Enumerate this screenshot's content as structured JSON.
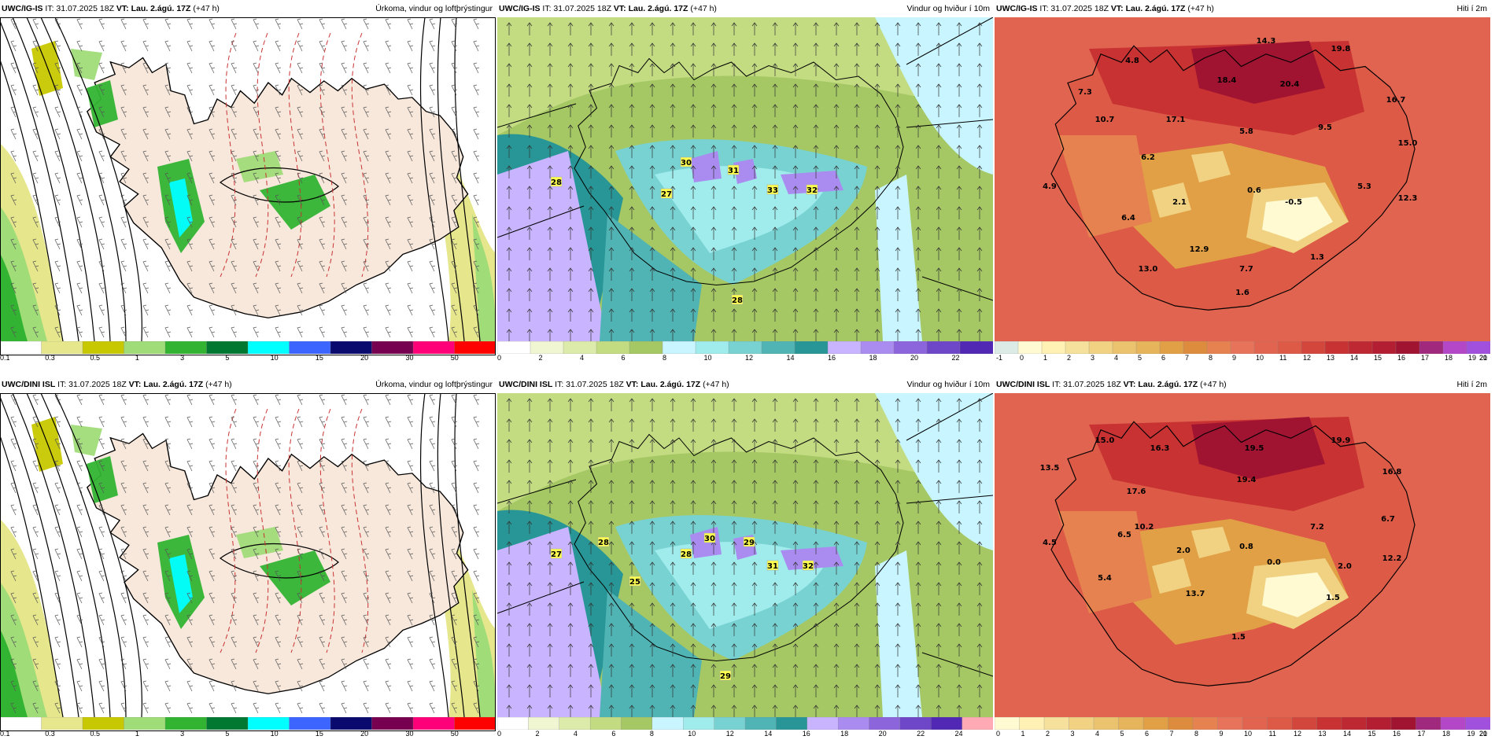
{
  "panels": [
    {
      "id": "p1",
      "model": "UWC/IG-IS",
      "it": " IT: 31.07.2025 18Z ",
      "vt_label": "VT: Lau. 2.ágú. 17Z",
      "lead": " (+47 h)",
      "title": "Úrkoma, vindur og loftþrýstingur",
      "type": "precip",
      "bar_colors": [
        "#ffffff",
        "#e6e68c",
        "#c8c800",
        "#a0dc78",
        "#32b432",
        "#007832",
        "#00ffff",
        "#3c64ff",
        "#0a0a6e",
        "#780050",
        "#ff0078",
        "#ff0000"
      ],
      "ticks": [
        "0.1",
        "0.3",
        "0.5",
        "1",
        "3",
        "5",
        "10",
        "15",
        "20",
        "30",
        "50"
      ],
      "labels": []
    },
    {
      "id": "p2",
      "model": "UWC/IG-IS",
      "it": " IT: 31.07.2025 18Z ",
      "vt_label": "VT: Lau. 2.ágú. 17Z",
      "lead": " (+47 h)",
      "title": "Vindur og hviður í 10m",
      "type": "wind",
      "bar_colors": [
        "#ffffff",
        "#f0f5d2",
        "#dcebaa",
        "#c3dc82",
        "#a5c864",
        "#c8f5ff",
        "#a0ebeb",
        "#78d2d2",
        "#50b4b4",
        "#289696",
        "#c8b4ff",
        "#aa8cf0",
        "#8c64dc",
        "#6e46c8",
        "#5028b4"
      ],
      "ticks": [
        "0",
        "2",
        "4",
        "6",
        "8",
        "10",
        "12",
        "14",
        "16",
        "18",
        "20",
        "22"
      ],
      "labels": [
        "28",
        "30",
        "31",
        "27",
        "33",
        "32",
        "28"
      ]
    },
    {
      "id": "p3",
      "model": "UWC/IG-IS",
      "it": " IT: 31.07.2025 18Z ",
      "vt_label": "VT: Lau. 2.ágú. 17Z",
      "lead": " (+47 h)",
      "title": "Hiti í 2m",
      "type": "temp",
      "bar_colors": [
        "#dcebe6",
        "#fffad2",
        "#fff0b4",
        "#f5e19b",
        "#f0d282",
        "#ebc36e",
        "#e6b45a",
        "#e1a046",
        "#dc8c3c",
        "#e68250",
        "#e6735a",
        "#e16450",
        "#dc5a46",
        "#d2463c",
        "#c83232",
        "#be2832",
        "#b41e32",
        "#a01432",
        "#a0287d",
        "#b446c8",
        "#a050dc"
      ],
      "ticks": [
        "-1",
        "0",
        "1",
        "2",
        "3",
        "4",
        "5",
        "6",
        "7",
        "8",
        "9",
        "10",
        "11",
        "12",
        "13",
        "14",
        "15",
        "16",
        "17",
        "18",
        "19",
        "20",
        "21"
      ],
      "labels": [
        "14.3",
        "19.8",
        "4.8",
        "7.3",
        "18.4",
        "20.4",
        "16.7",
        "10.7",
        "17.1",
        "5.8",
        "9.5",
        "15.0",
        "6.2",
        "4.9",
        "0.6",
        "5.3",
        "2.1",
        "-0.5",
        "12.3",
        "6.4",
        "12.9",
        "1.3",
        "13.0",
        "7.7",
        "1.6"
      ]
    },
    {
      "id": "p4",
      "model": "UWC/DINI ISL",
      "it": " IT: 31.07.2025 18Z ",
      "vt_label": "VT: Lau. 2.ágú. 17Z",
      "lead": " (+47 h)",
      "title": "Úrkoma, vindur og loftþrýstingur",
      "type": "precip",
      "bar_colors": [
        "#ffffff",
        "#e6e68c",
        "#c8c800",
        "#a0dc78",
        "#32b432",
        "#007832",
        "#00ffff",
        "#3c64ff",
        "#0a0a6e",
        "#780050",
        "#ff0078",
        "#ff0000"
      ],
      "ticks": [
        "0.1",
        "0.3",
        "0.5",
        "1",
        "3",
        "5",
        "10",
        "15",
        "20",
        "30",
        "50"
      ],
      "labels": []
    },
    {
      "id": "p5",
      "model": "UWC/DINI ISL",
      "it": " IT: 31.07.2025 18Z ",
      "vt_label": "VT: Lau. 2.ágú. 17Z",
      "lead": " (+47 h)",
      "title": "Vindur og hviður í 10m",
      "type": "wind",
      "bar_colors": [
        "#ffffff",
        "#f0f5d2",
        "#dcebaa",
        "#c3dc82",
        "#a5c864",
        "#c8f5ff",
        "#a0ebeb",
        "#78d2d2",
        "#50b4b4",
        "#289696",
        "#c8b4ff",
        "#aa8cf0",
        "#8c64dc",
        "#6e46c8",
        "#5028b4",
        "#ffaab4"
      ],
      "ticks": [
        "0",
        "2",
        "4",
        "6",
        "8",
        "10",
        "12",
        "14",
        "16",
        "18",
        "20",
        "22",
        "24"
      ],
      "labels": [
        "28",
        "30",
        "29",
        "27",
        "28",
        "25",
        "31",
        "32",
        "29"
      ]
    },
    {
      "id": "p6",
      "model": "UWC/DINI ISL",
      "it": " IT: 31.07.2025 18Z ",
      "vt_label": "VT: Lau. 2.ágú. 17Z",
      "lead": " (+47 h)",
      "title": "Hiti í 2m",
      "type": "temp",
      "bar_colors": [
        "#fffad2",
        "#fff0b4",
        "#f5e19b",
        "#f0d282",
        "#ebc36e",
        "#e6b45a",
        "#e1a046",
        "#dc8c3c",
        "#e68250",
        "#e6735a",
        "#e16450",
        "#dc5a46",
        "#d2463c",
        "#c83232",
        "#be2832",
        "#b41e32",
        "#a01432",
        "#a0287d",
        "#b446c8",
        "#a050dc"
      ],
      "ticks": [
        "0",
        "1",
        "2",
        "3",
        "4",
        "5",
        "6",
        "7",
        "8",
        "9",
        "10",
        "11",
        "12",
        "13",
        "14",
        "15",
        "16",
        "17",
        "18",
        "19",
        "20",
        "21"
      ],
      "labels": [
        "15.0",
        "16.3",
        "19.5",
        "19.9",
        "13.5",
        "17.6",
        "19.4",
        "16.8",
        "10.2",
        "7.2",
        "6.7",
        "4.5",
        "6.5",
        "2.0",
        "0.8",
        "12.2",
        "5.4",
        "0.0",
        "2.0",
        "13.7",
        "1.5",
        "1.5"
      ]
    }
  ]
}
